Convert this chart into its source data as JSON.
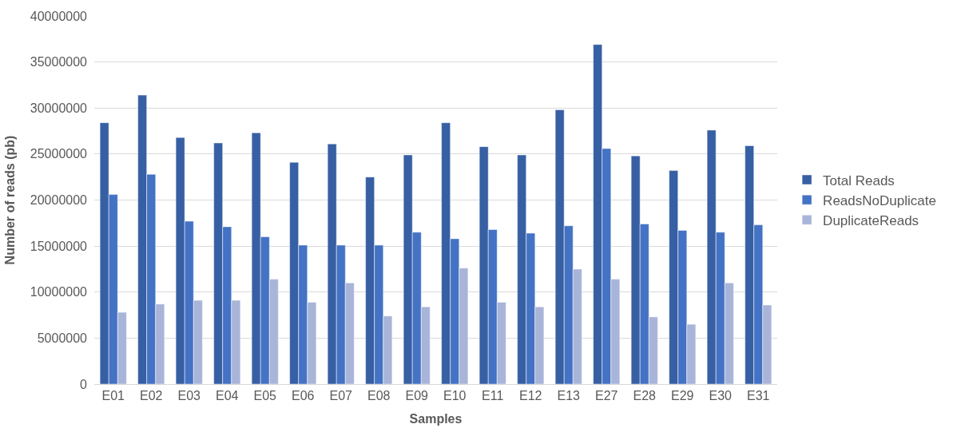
{
  "chart_data": {
    "type": "bar",
    "xlabel": "Samples",
    "ylabel": "Number of reads (pb)",
    "categories": [
      "E01",
      "E02",
      "E03",
      "E04",
      "E05",
      "E06",
      "E07",
      "E08",
      "E09",
      "E10",
      "E11",
      "E12",
      "E13",
      "E27",
      "E28",
      "E29",
      "E30",
      "E31"
    ],
    "series": [
      {
        "name": "Total Reads",
        "color": "#375fa3",
        "values": [
          28400000,
          31400000,
          26800000,
          26200000,
          27300000,
          24100000,
          26100000,
          22500000,
          24900000,
          28400000,
          25800000,
          24900000,
          29800000,
          36900000,
          24800000,
          23200000,
          27600000,
          25900000
        ]
      },
      {
        "name": "ReadsNoDuplicate",
        "color": "#4472c4",
        "values": [
          20600000,
          22800000,
          17700000,
          17100000,
          16000000,
          15100000,
          15100000,
          15100000,
          16500000,
          15800000,
          16800000,
          16400000,
          17200000,
          25600000,
          17400000,
          16700000,
          16500000,
          17300000
        ]
      },
      {
        "name": "DuplicateReads",
        "color": "#a9b4d9",
        "values": [
          7800000,
          8700000,
          9100000,
          9100000,
          11400000,
          8900000,
          11000000,
          7400000,
          8400000,
          12600000,
          8900000,
          8400000,
          12500000,
          11400000,
          7300000,
          6500000,
          11000000,
          8600000
        ]
      }
    ],
    "ylim": [
      0,
      40000000
    ],
    "yticks": [
      0,
      5000000,
      10000000,
      15000000,
      20000000,
      25000000,
      30000000,
      35000000,
      40000000
    ],
    "grid": "y",
    "legend": "right"
  }
}
